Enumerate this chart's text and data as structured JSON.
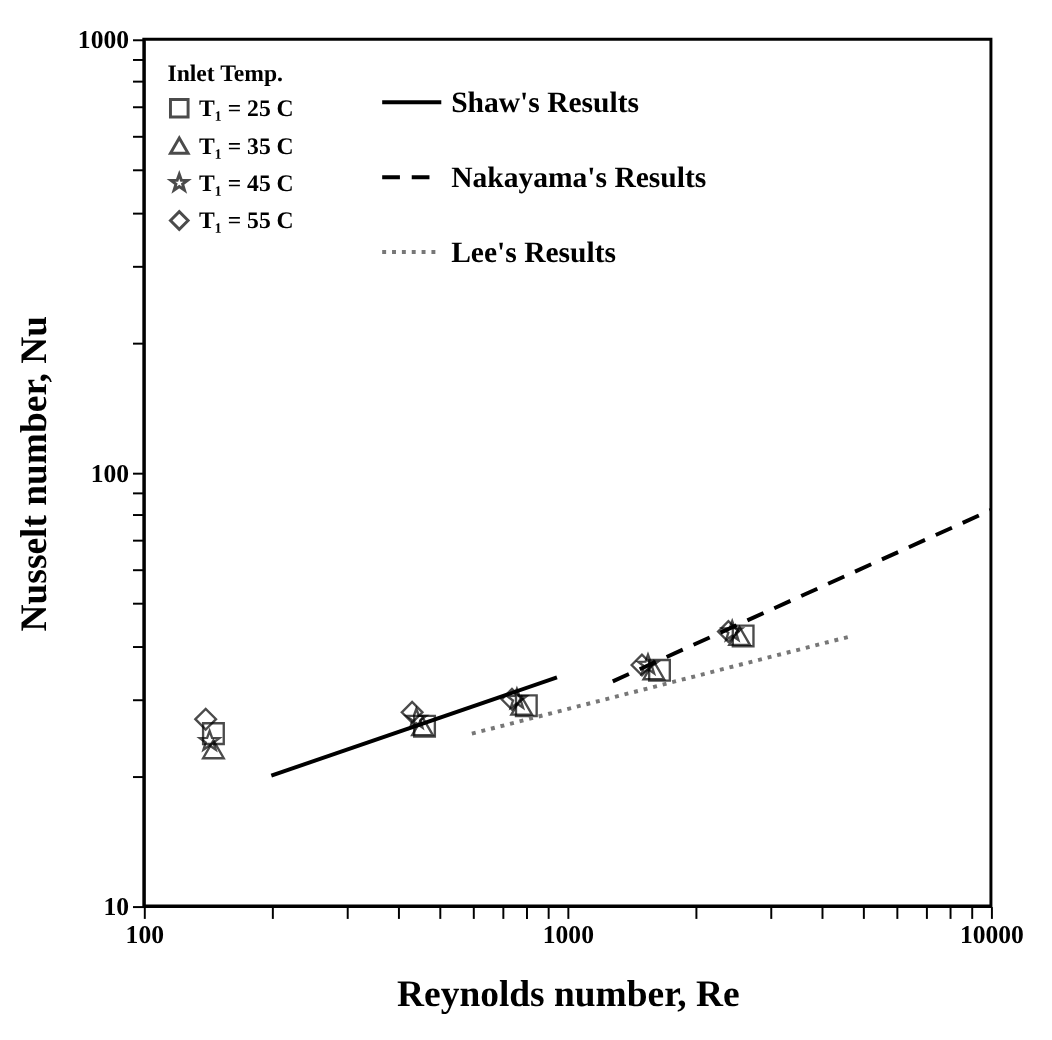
{
  "chart_data": {
    "type": "scatter",
    "xlabel": "Reynolds number, Re",
    "ylabel": "Nusselt number, Nu",
    "legend_title": "Inlet Temp.",
    "log": "xy",
    "grid": false,
    "legend": "top left",
    "xlim": [
      100,
      10000
    ],
    "ylim": [
      10,
      1000
    ],
    "xticks": [
      100,
      {
        "value": 200,
        "label": null
      },
      {
        "value": 300,
        "label": null
      },
      {
        "value": 400,
        "label": null
      },
      {
        "value": 500,
        "label": null
      },
      {
        "value": 600,
        "label": null
      },
      {
        "value": 700,
        "label": null
      },
      {
        "value": 800,
        "label": null
      },
      {
        "value": 900,
        "label": null
      },
      1000,
      {
        "value": 2000,
        "label": null
      },
      {
        "value": 3000,
        "label": null
      },
      {
        "value": 4000,
        "label": null
      },
      {
        "value": 5000,
        "label": null
      },
      {
        "value": 6000,
        "label": null
      },
      {
        "value": 7000,
        "label": null
      },
      {
        "value": 8000,
        "label": null
      },
      {
        "value": 9000,
        "label": null
      },
      10000
    ],
    "yticks": [
      10,
      {
        "value": 20,
        "label": null
      },
      {
        "value": 30,
        "label": null
      },
      {
        "value": 40,
        "label": null
      },
      {
        "value": 50,
        "label": null
      },
      {
        "value": 60,
        "label": null
      },
      {
        "value": 70,
        "label": null
      },
      {
        "value": 80,
        "label": null
      },
      {
        "value": 90,
        "label": null
      },
      100,
      {
        "value": 200,
        "label": null
      },
      {
        "value": 300,
        "label": null
      },
      {
        "value": 400,
        "label": null
      },
      {
        "value": 500,
        "label": null
      },
      {
        "value": 600,
        "label": null
      },
      {
        "value": 700,
        "label": null
      },
      {
        "value": 800,
        "label": null
      },
      {
        "value": 900,
        "label": null
      },
      1000
    ],
    "series": [
      {
        "name": "T₁ = 25  C",
        "marker": "square",
        "color": "#000000",
        "x": [
          146,
          460,
          800,
          1650,
          2600
        ],
        "values": [
          25,
          26,
          29,
          35,
          42
        ]
      },
      {
        "name": "T₁ = 35  C",
        "marker": "triangle",
        "color": "#000000",
        "x": [
          146,
          455,
          780,
          1600,
          2550
        ],
        "values": [
          23,
          26,
          29,
          35,
          42
        ]
      },
      {
        "name": "T₁ = 45  C",
        "marker": "star",
        "color": "#000000",
        "x": [
          143,
          440,
          760,
          1550,
          2450
        ],
        "values": [
          24,
          27,
          30,
          36,
          43
        ]
      },
      {
        "name": "T₁ = 55  C",
        "marker": "diamond",
        "color": "#000000",
        "x": [
          140,
          430,
          740,
          1500,
          2400
        ],
        "values": [
          27,
          28,
          30,
          36,
          43
        ]
      },
      {
        "name": "Shaw's Results",
        "type": "line",
        "line_style": "solid",
        "color": "#000000",
        "x": [
          200,
          945
        ],
        "values": [
          20,
          33.7
        ]
      },
      {
        "name": "Nakayama's Results",
        "type": "line",
        "line_style": "dashed",
        "color": "#000000",
        "x": [
          1280,
          10000
        ],
        "values": [
          33,
          82
        ]
      },
      {
        "name": "Lee's Results",
        "type": "line",
        "line_style": "dotted",
        "color": "#777777",
        "x": [
          595,
          4700
        ],
        "values": [
          25,
          42
        ]
      }
    ]
  }
}
